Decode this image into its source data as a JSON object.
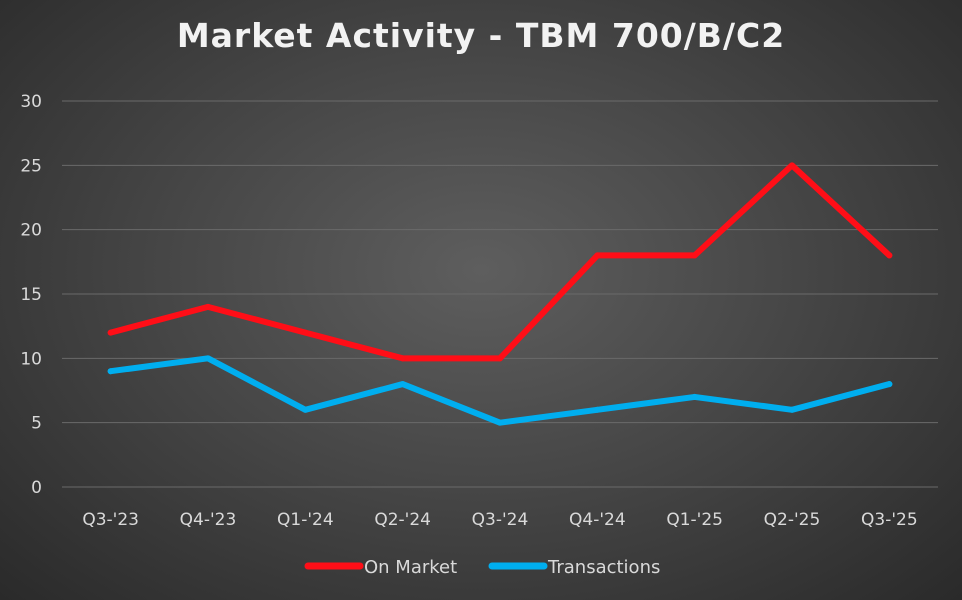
{
  "chart_data": {
    "type": "line",
    "title": "Market Activity - TBM 700/B/C2",
    "categories": [
      "Q3-'23",
      "Q4-'23",
      "Q1-'24",
      "Q2-'24",
      "Q3-'24",
      "Q4-'24",
      "Q1-'25",
      "Q2-'25",
      "Q3-'25"
    ],
    "series": [
      {
        "name": "On Market",
        "color": "#ff0e17",
        "values": [
          12,
          14,
          12,
          10,
          10,
          18,
          18,
          25,
          18
        ]
      },
      {
        "name": "Transactions",
        "color": "#00aeef",
        "values": [
          9,
          10,
          6,
          8,
          5,
          6,
          7,
          6,
          8
        ]
      }
    ],
    "ylim": [
      0,
      30
    ],
    "yticks": [
      0,
      5,
      10,
      15,
      20,
      25,
      30
    ],
    "grid": true,
    "legend": "bottom",
    "xlabel": "",
    "ylabel": ""
  }
}
